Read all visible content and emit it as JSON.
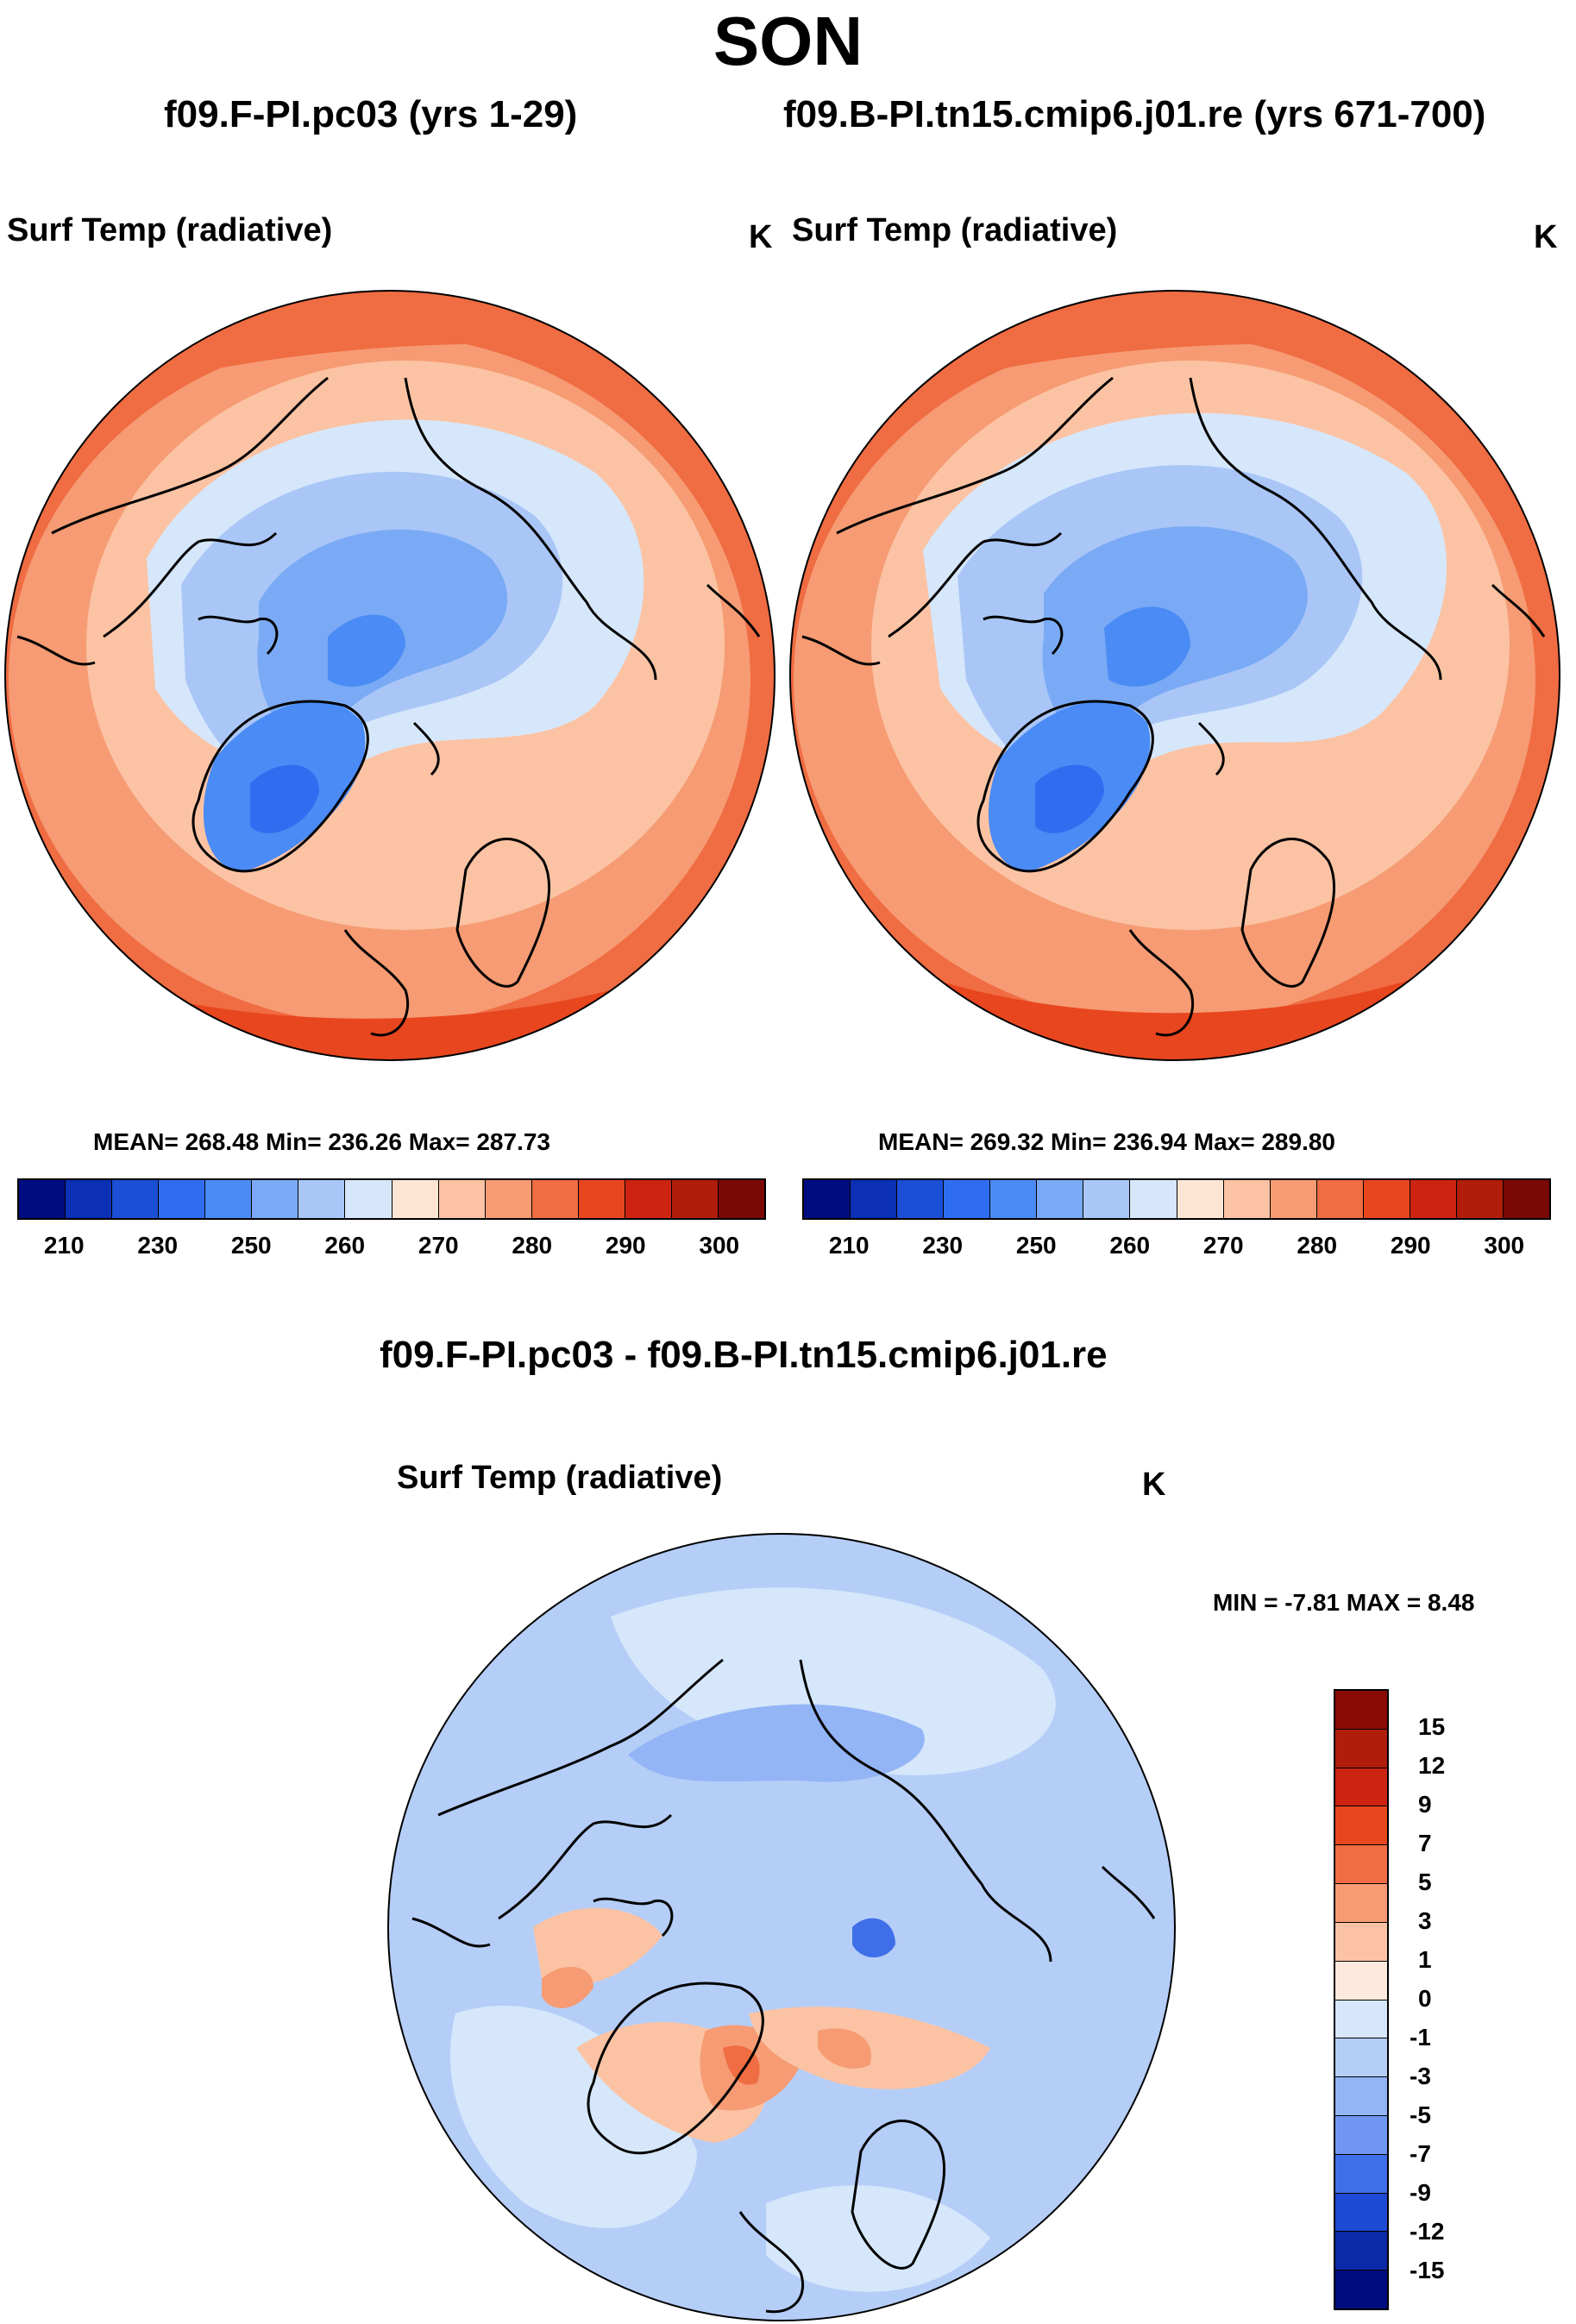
{
  "header": {
    "season": "SON"
  },
  "left_panel": {
    "case_title": "f09.F-PI.pc03 (yrs 1-29)",
    "variable": "Surf Temp (radiative)",
    "units": "K",
    "stats": "MEAN= 268.48  Min= 236.26  Max= 287.73"
  },
  "right_panel": {
    "case_title": "f09.B-PI.tn15.cmip6.j01.re (yrs 671-700)",
    "variable": "Surf Temp (radiative)",
    "units": "K",
    "stats": "MEAN= 269.32  Min= 236.94  Max= 289.80"
  },
  "diff_panel": {
    "title": "f09.F-PI.pc03 - f09.B-PI.tn15.cmip6.j01.re",
    "variable": "Surf Temp (radiative)",
    "units": "K",
    "stats": "MIN =  -7.81 MAX =   8.48"
  },
  "chart_data": [
    {
      "type": "heatmap",
      "projection": "north-polar-stereographic",
      "title": "f09.F-PI.pc03 (yrs 1-29)",
      "variable": "Surf Temp (radiative)",
      "units": "K",
      "mean": 268.48,
      "min": 236.26,
      "max": 287.73,
      "colorbar": {
        "ticks": [
          210,
          230,
          250,
          260,
          270,
          280,
          290,
          300
        ],
        "levels": [
          210,
          220,
          230,
          240,
          250,
          255,
          260,
          265,
          270,
          275,
          280,
          285,
          290,
          295,
          300
        ],
        "colors": [
          "#000d80",
          "#0b2fb5",
          "#1a4fd6",
          "#2f6df0",
          "#4a8bf5",
          "#7aaaf5",
          "#a9c6f7",
          "#d6e7fb",
          "#fde5d4",
          "#fbc3a4",
          "#f69b73",
          "#f06c42",
          "#e8461f",
          "#cc2410",
          "#b01d0a",
          "#7a0806"
        ]
      }
    },
    {
      "type": "heatmap",
      "projection": "north-polar-stereographic",
      "title": "f09.B-PI.tn15.cmip6.j01.re (yrs 671-700)",
      "variable": "Surf Temp (radiative)",
      "units": "K",
      "mean": 269.32,
      "min": 236.94,
      "max": 289.8,
      "colorbar": {
        "ticks": [
          210,
          230,
          250,
          260,
          270,
          280,
          290,
          300
        ],
        "levels": [
          210,
          220,
          230,
          240,
          250,
          255,
          260,
          265,
          270,
          275,
          280,
          285,
          290,
          295,
          300
        ],
        "colors": [
          "#000d80",
          "#0b2fb5",
          "#1a4fd6",
          "#2f6df0",
          "#4a8bf5",
          "#7aaaf5",
          "#a9c6f7",
          "#d6e7fb",
          "#fde5d4",
          "#fbc3a4",
          "#f69b73",
          "#f06c42",
          "#e8461f",
          "#cc2410",
          "#b01d0a",
          "#7a0806"
        ]
      }
    },
    {
      "type": "heatmap",
      "projection": "north-polar-stereographic",
      "title": "f09.F-PI.pc03 - f09.B-PI.tn15.cmip6.j01.re",
      "variable": "Surf Temp (radiative)",
      "units": "K",
      "min": -7.81,
      "max": 8.48,
      "colorbar": {
        "ticks": [
          15,
          12,
          9,
          7,
          5,
          3,
          1,
          0,
          -1,
          -3,
          -5,
          -7,
          -9,
          -12,
          -15
        ],
        "colors": [
          "#8a0a06",
          "#b01d0a",
          "#cc2410",
          "#e8461f",
          "#f06c42",
          "#f69b73",
          "#fbc3a4",
          "#fde9dd",
          "#d6e7fb",
          "#b5cef8",
          "#93b4f5",
          "#6f97f2",
          "#3f6fe8",
          "#1d49d4",
          "#0b2aa8",
          "#000d80"
        ]
      }
    }
  ]
}
